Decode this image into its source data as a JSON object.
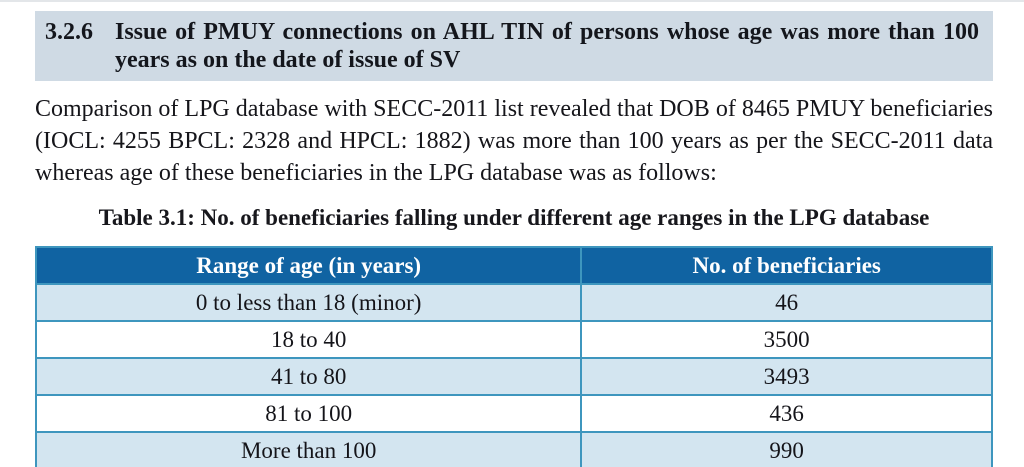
{
  "section_heading": {
    "number": "3.2.6",
    "title": "Issue of PMUY connections on AHL TIN of persons whose age was more than 100 years as on the date of issue of SV",
    "background": "#cfdae4",
    "text_color": "#14161c"
  },
  "paragraph": {
    "text": "Comparison of LPG database with SECC-2011 list revealed that DOB of 8465 PMUY beneficiaries (IOCL: 4255 BPCL: 2328 and HPCL: 1882) was more than 100 years as per the SECC-2011 data whereas age of these beneficiaries in the LPG database was as follows:"
  },
  "table": {
    "caption": "Table 3.1: No. of beneficiaries falling under different age ranges in the LPG database",
    "header_bg": "#1063a2",
    "header_text_color": "#ffffff",
    "alt_row_bg": "#d3e5f0",
    "border_color": "#3e96be",
    "columns": [
      "Range of age (in years)",
      "No. of beneficiaries"
    ],
    "rows": [
      {
        "range": "0 to less than 18 (minor)",
        "count": "46"
      },
      {
        "range": "18 to 40",
        "count": "3500"
      },
      {
        "range": "41 to 80",
        "count": "3493"
      },
      {
        "range": "81 to 100",
        "count": "436"
      },
      {
        "range": "More than 100",
        "count": "990"
      }
    ]
  }
}
